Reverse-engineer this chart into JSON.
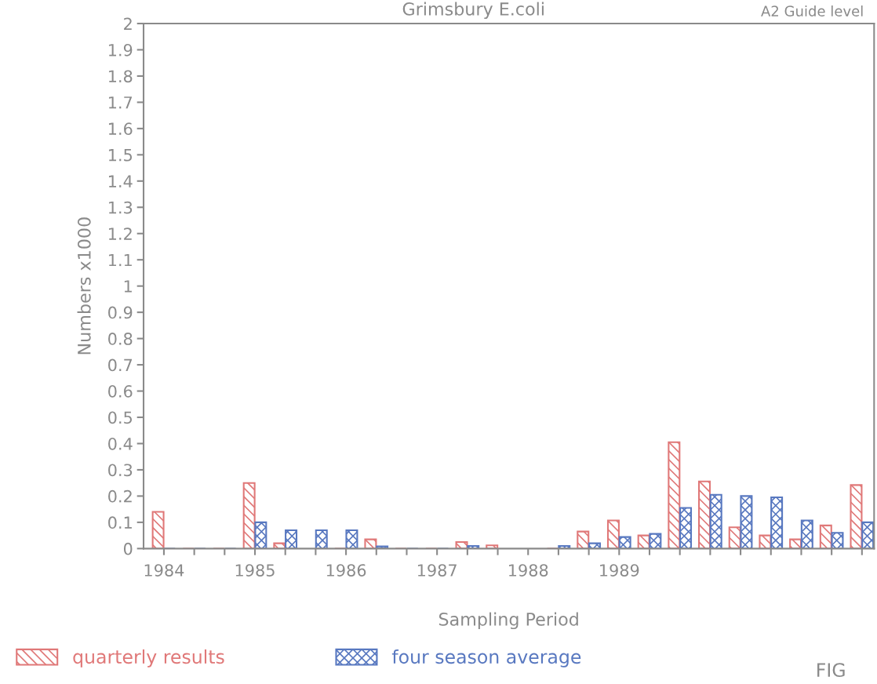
{
  "chart_data": {
    "type": "bar",
    "title": "Grimsbury E.coli",
    "xlabel": "Sampling Period",
    "ylabel": "Numbers x1000",
    "annotations": [
      "A2 Guide level",
      "FIG"
    ],
    "categories": [
      "1984",
      null,
      null,
      "1985",
      null,
      null,
      "1986",
      null,
      null,
      "1987",
      null,
      null,
      "1988",
      null,
      null,
      "1989",
      null,
      null,
      null,
      null,
      null,
      null,
      null,
      null
    ],
    "series": [
      {
        "name": "quarterly results",
        "color": "#e07878",
        "values": [
          0.14,
          0,
          0,
          0.25,
          0.02,
          null,
          0,
          0.035,
          0,
          0,
          0.025,
          0.012,
          null,
          0,
          0.065,
          0.107,
          0.05,
          0.405,
          0.256,
          0.081,
          0.05,
          0.035,
          0.088,
          0.242
        ]
      },
      {
        "name": "four season average",
        "color": "#5878c0",
        "values": [
          0,
          0,
          0,
          0.1,
          0.07,
          0.07,
          0.07,
          0.008,
          0,
          0,
          0.01,
          null,
          null,
          0.01,
          0.02,
          0.044,
          0.056,
          0.155,
          0.205,
          0.2,
          0.195,
          0.107,
          0.06,
          0.1
        ]
      }
    ],
    "ylim": [
      0,
      2
    ],
    "yticks": [
      0,
      0.1,
      0.2,
      0.3,
      0.4,
      0.5,
      0.6,
      0.7,
      0.8,
      0.9,
      1,
      1.1,
      1.2,
      1.3,
      1.4,
      1.5,
      1.6,
      1.7,
      1.8,
      1.9,
      2
    ],
    "grid": false,
    "legend": "bottom"
  }
}
